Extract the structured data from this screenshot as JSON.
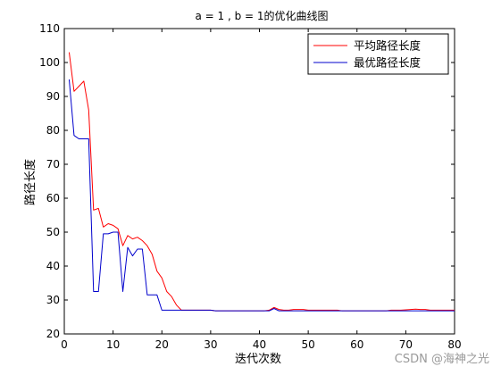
{
  "chart_data": {
    "type": "line",
    "title": "a = 1 , b = 1的优化曲线图",
    "xlabel": "迭代次数",
    "ylabel": "路径长度",
    "xlim": [
      0,
      80
    ],
    "ylim": [
      20,
      110
    ],
    "xticks": [
      0,
      10,
      20,
      30,
      40,
      50,
      60,
      70,
      80
    ],
    "yticks": [
      20,
      30,
      40,
      50,
      60,
      70,
      80,
      90,
      100,
      110
    ],
    "legend_position": "top-right",
    "grid": false,
    "series": [
      {
        "name": "平均路径长度",
        "color": "#ff0000",
        "x": [
          1,
          2,
          3,
          4,
          5,
          6,
          7,
          8,
          9,
          10,
          11,
          12,
          13,
          14,
          15,
          16,
          17,
          18,
          19,
          20,
          21,
          22,
          23,
          24,
          25,
          26,
          27,
          28,
          29,
          30,
          31,
          32,
          33,
          34,
          35,
          36,
          37,
          38,
          39,
          40,
          41,
          42,
          43,
          44,
          45,
          46,
          47,
          48,
          49,
          50,
          51,
          52,
          53,
          54,
          55,
          56,
          57,
          58,
          59,
          60,
          61,
          62,
          63,
          64,
          65,
          66,
          67,
          68,
          69,
          70,
          71,
          72,
          73,
          74,
          75,
          76,
          77,
          78,
          79,
          80
        ],
        "values": [
          103,
          91.5,
          93,
          94.5,
          86,
          56.5,
          57,
          51.5,
          52.5,
          52,
          51,
          46,
          49,
          48,
          48.5,
          47.5,
          46,
          43.5,
          38.5,
          36.5,
          32.5,
          31,
          28.5,
          27,
          27,
          27,
          27,
          27,
          27,
          27,
          26.8,
          26.8,
          26.8,
          26.8,
          26.8,
          26.8,
          26.8,
          26.8,
          26.8,
          26.8,
          26.8,
          27,
          27.8,
          27.2,
          27,
          27,
          27.2,
          27.2,
          27.2,
          27,
          27,
          27,
          27,
          27,
          27,
          27,
          26.8,
          26.8,
          26.8,
          26.8,
          26.8,
          26.8,
          26.8,
          26.8,
          26.8,
          26.8,
          27,
          27,
          27,
          27.1,
          27.2,
          27.3,
          27.2,
          27.2,
          27,
          27,
          27,
          27,
          27,
          27
        ]
      },
      {
        "name": "最优路径长度",
        "color": "#0000cc",
        "x": [
          1,
          2,
          3,
          4,
          5,
          6,
          7,
          8,
          9,
          10,
          11,
          12,
          13,
          14,
          15,
          16,
          17,
          18,
          19,
          20,
          21,
          22,
          23,
          24,
          25,
          26,
          27,
          28,
          29,
          30,
          31,
          32,
          33,
          34,
          35,
          36,
          37,
          38,
          39,
          40,
          41,
          42,
          43,
          44,
          45,
          46,
          47,
          48,
          49,
          50,
          51,
          52,
          53,
          54,
          55,
          56,
          57,
          58,
          59,
          60,
          61,
          62,
          63,
          64,
          65,
          66,
          67,
          68,
          69,
          70,
          71,
          72,
          73,
          74,
          75,
          76,
          77,
          78,
          79,
          80
        ],
        "values": [
          95,
          78.5,
          77.5,
          77.5,
          77.5,
          32.5,
          32.5,
          49.5,
          49.5,
          50,
          50,
          32.5,
          45.5,
          43,
          45,
          45,
          31.5,
          31.5,
          31.5,
          27,
          27,
          27,
          27,
          27,
          27,
          27,
          27,
          27,
          27,
          27,
          26.8,
          26.8,
          26.8,
          26.8,
          26.8,
          26.8,
          26.8,
          26.8,
          26.8,
          26.8,
          26.8,
          26.8,
          27.5,
          26.8,
          26.8,
          26.8,
          26.8,
          26.8,
          26.8,
          26.8,
          26.8,
          26.8,
          26.8,
          26.8,
          26.8,
          26.8,
          26.8,
          26.8,
          26.8,
          26.8,
          26.8,
          26.8,
          26.8,
          26.8,
          26.8,
          26.8,
          26.8,
          26.8,
          26.8,
          26.8,
          26.8,
          26.8,
          26.8,
          26.8,
          26.8,
          26.8,
          26.8,
          26.8,
          26.8,
          26.8
        ]
      }
    ]
  },
  "watermark": "CSDN @海神之光"
}
